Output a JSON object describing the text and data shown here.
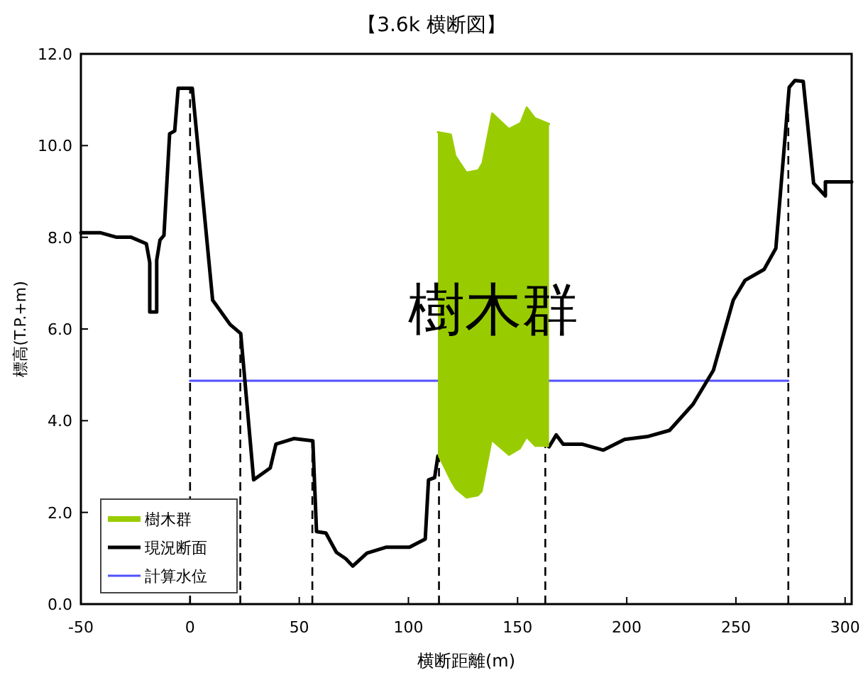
{
  "chart_data": {
    "type": "line",
    "title": "【3.6k 横断図】",
    "xlabel": "横断距離(m)",
    "ylabel": "標高(T.P.+m)",
    "xlim": [
      -50,
      303
    ],
    "xticks": [
      -50,
      0,
      50,
      100,
      150,
      200,
      250,
      300
    ],
    "ylim": [
      0,
      12
    ],
    "yticks": [
      {
        "value": 0,
        "label": "0.0"
      },
      {
        "value": 2,
        "label": "2.0"
      },
      {
        "value": 4,
        "label": "4.0"
      },
      {
        "value": 6,
        "label": "6.0"
      },
      {
        "value": 8,
        "label": "8.0"
      },
      {
        "value": 10,
        "label": "10.0"
      },
      {
        "value": 12,
        "label": "12.0"
      }
    ],
    "grid": false,
    "legend": "bottom left",
    "series": [
      {
        "name": "樹木群",
        "type": "line",
        "color": "#99cc00",
        "x": [
          113.5,
          119.4,
          121.5,
          126.5,
          132,
          134,
          138.4,
          146,
          151.4,
          154.2,
          157.9,
          164.4
        ],
        "values": [
          10.29,
          10.24,
          9.77,
          9.41,
          9.46,
          9.62,
          10.7,
          10.36,
          10.49,
          10.83,
          10.6,
          10.47
        ],
        "upper": [
          10.29,
          10.24,
          9.77,
          9.41,
          9.46,
          9.62,
          10.7,
          10.36,
          10.49,
          10.83,
          10.6,
          10.47
        ],
        "lower": [
          3.23,
          2.66,
          2.5,
          2.3,
          2.35,
          2.45,
          3.54,
          3.23,
          3.38,
          3.61,
          3.43,
          3.43
        ]
      },
      {
        "name": "現況断面",
        "color": "#000000",
        "x": [
          -50,
          -41.2,
          -33.6,
          -27,
          -20,
          -18.5,
          -18.5,
          -15.3,
          -15.3,
          -13.8,
          -12,
          -9.4,
          -7,
          -5.5,
          1,
          10.3,
          18.3,
          23.2,
          29.1,
          36.7,
          39.3,
          47.5,
          56.2,
          57.9,
          62.2,
          67,
          71.3,
          74.5,
          81,
          89.7,
          100.5,
          107.7,
          109.2,
          112,
          113.5,
          140,
          164.4,
          167.7,
          170.9,
          179.5,
          189.3,
          199,
          209.9,
          219.6,
          230.4,
          239.7,
          248.8,
          254.2,
          262.9,
          268.3,
          274.4,
          277,
          280.8,
          282.3,
          285.6,
          291,
          291,
          303
        ],
        "values": [
          8.1,
          8.1,
          8.0,
          8.0,
          7.86,
          7.45,
          6.37,
          6.37,
          7.5,
          7.94,
          8.04,
          10.26,
          10.32,
          11.25,
          11.25,
          6.63,
          6.1,
          5.9,
          2.71,
          2.97,
          3.49,
          3.61,
          3.56,
          1.58,
          1.55,
          1.13,
          0.99,
          0.83,
          1.11,
          1.24,
          1.24,
          1.42,
          2.71,
          2.76,
          3.23,
          null,
          3.43,
          3.69,
          3.49,
          3.49,
          3.36,
          3.59,
          3.66,
          3.79,
          4.36,
          5.1,
          6.63,
          7.06,
          7.3,
          7.76,
          11.27,
          11.42,
          11.4,
          10.7,
          9.18,
          8.9,
          9.21,
          9.21
        ]
      },
      {
        "name": "計算水位",
        "color": "#5050ff",
        "x": [
          0,
          274
        ],
        "values": [
          4.87,
          4.87
        ]
      }
    ],
    "ref_lines": [
      {
        "axis": "x",
        "value": 0,
        "color": "#000000",
        "line_style": "dashed"
      },
      {
        "axis": "x",
        "value": 23,
        "color": "#000000",
        "line_style": "dashed"
      },
      {
        "axis": "x",
        "value": 56,
        "color": "#000000",
        "line_style": "dashed"
      },
      {
        "axis": "x",
        "value": 114,
        "color": "#000000",
        "line_style": "dashed"
      },
      {
        "axis": "x",
        "value": 162.7,
        "color": "#000000",
        "line_style": "dashed"
      },
      {
        "axis": "x",
        "value": 274,
        "color": "#000000",
        "line_style": "dashed"
      }
    ],
    "annotations": [
      "樹木群"
    ]
  }
}
